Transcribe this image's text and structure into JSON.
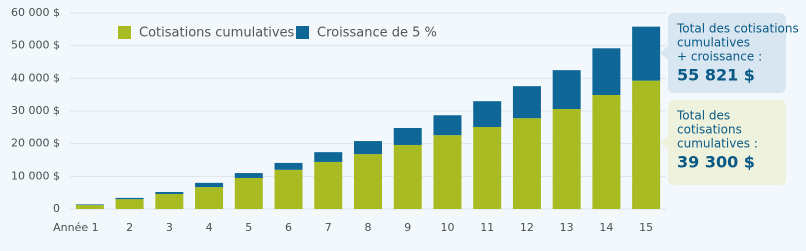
{
  "chart_data": {
    "type": "stacked_bar",
    "categories": [
      "Année 1",
      "2",
      "3",
      "4",
      "5",
      "6",
      "7",
      "8",
      "9",
      "10",
      "11",
      "12",
      "13",
      "14",
      "15"
    ],
    "series": [
      {
        "name": "Cotisations cumulatives",
        "color": "#a8bb22",
        "values": [
          1200,
          3000,
          4600,
          6700,
          9500,
          12000,
          14400,
          16800,
          19600,
          22600,
          25100,
          27800,
          30600,
          34900,
          39300
        ]
      },
      {
        "name": "Croissance de 5 %",
        "color": "#0e6797",
        "values": [
          200,
          400,
          600,
          1300,
          1500,
          2100,
          3000,
          4000,
          5200,
          6100,
          7900,
          9800,
          11900,
          14300,
          16521
        ]
      }
    ],
    "ylim": [
      0,
      60000
    ],
    "yticks": [
      0,
      {
        "value": 10000,
        "label": "10 000 $"
      },
      {
        "value": 20000,
        "label": "20 000 $"
      },
      {
        "value": 30000,
        "label": "30 000 $"
      },
      {
        "value": 40000,
        "label": "40 000 $"
      },
      {
        "value": 50000,
        "label": "50 000 $"
      },
      {
        "value": 60000,
        "label": "60 000 $"
      }
    ],
    "grid": true,
    "annotations": [
      {
        "lines": [
          "Total des cotisations",
          "cumulatives",
          "+ croissance :"
        ],
        "value_label": "55 821 $"
      },
      {
        "lines": [
          "Total des",
          "cotisations",
          "cumulatives :"
        ],
        "value_label": "39 300 $"
      }
    ]
  }
}
